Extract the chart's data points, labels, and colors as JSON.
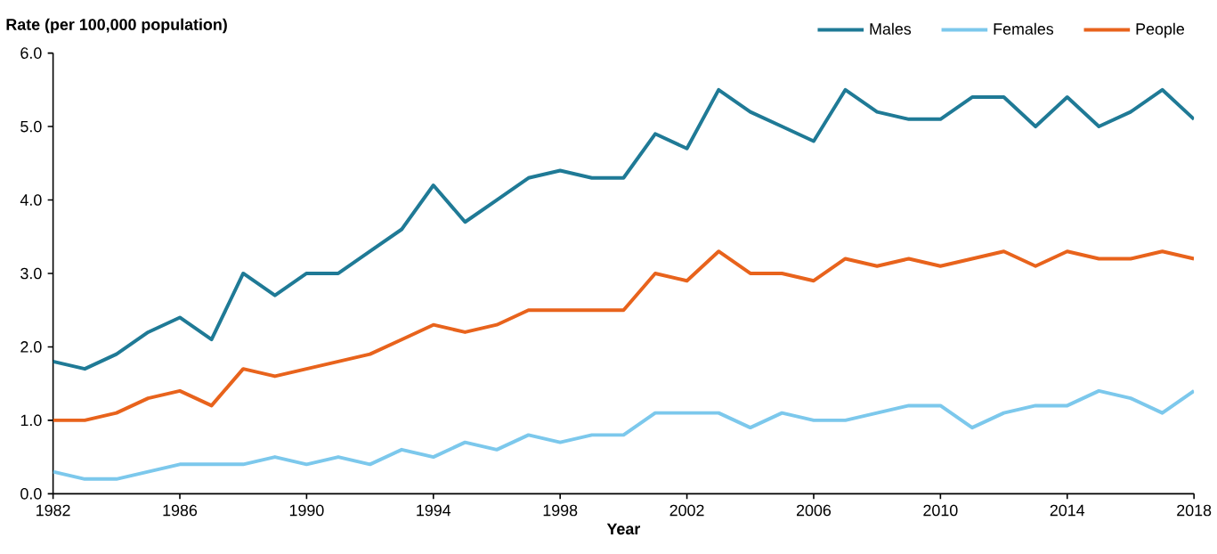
{
  "chart_data": {
    "type": "line",
    "ylabel": "Rate (per 100,000 population)",
    "xlabel": "Year",
    "x": [
      1982,
      1983,
      1984,
      1985,
      1986,
      1987,
      1988,
      1989,
      1990,
      1991,
      1992,
      1993,
      1994,
      1995,
      1996,
      1997,
      1998,
      1999,
      2000,
      2001,
      2002,
      2003,
      2004,
      2005,
      2006,
      2007,
      2008,
      2009,
      2010,
      2011,
      2012,
      2013,
      2014,
      2015,
      2016,
      2017,
      2018
    ],
    "series": [
      {
        "name": "Males",
        "color": "#1f7a96",
        "values": [
          1.8,
          1.7,
          1.9,
          2.2,
          2.4,
          2.1,
          3.0,
          2.7,
          3.0,
          3.0,
          3.3,
          3.6,
          4.2,
          3.7,
          4.0,
          4.3,
          4.4,
          4.3,
          4.3,
          4.9,
          4.7,
          5.5,
          5.2,
          5.0,
          4.8,
          5.5,
          5.2,
          5.1,
          5.1,
          5.4,
          5.4,
          5.0,
          5.4,
          5.0,
          5.2,
          5.5,
          5.1
        ]
      },
      {
        "name": "Females",
        "color": "#7cc8ec",
        "values": [
          0.3,
          0.2,
          0.2,
          0.3,
          0.4,
          0.4,
          0.4,
          0.5,
          0.4,
          0.5,
          0.4,
          0.6,
          0.5,
          0.7,
          0.6,
          0.8,
          0.7,
          0.8,
          0.8,
          1.1,
          1.1,
          1.1,
          0.9,
          1.1,
          1.0,
          1.0,
          1.1,
          1.2,
          1.2,
          0.9,
          1.1,
          1.2,
          1.2,
          1.4,
          1.3,
          1.1,
          1.4
        ]
      },
      {
        "name": "People",
        "color": "#e8631c",
        "values": [
          1.0,
          1.0,
          1.1,
          1.3,
          1.4,
          1.2,
          1.7,
          1.6,
          1.7,
          1.8,
          1.9,
          2.1,
          2.3,
          2.2,
          2.3,
          2.5,
          2.5,
          2.5,
          2.5,
          3.0,
          2.9,
          3.3,
          3.0,
          3.0,
          2.9,
          3.2,
          3.1,
          3.2,
          3.1,
          3.2,
          3.3,
          3.1,
          3.3,
          3.2,
          3.2,
          3.3,
          3.2
        ]
      }
    ],
    "xlim": [
      1982,
      2018
    ],
    "xticks": [
      1982,
      1986,
      1990,
      1994,
      1998,
      2002,
      2006,
      2010,
      2014,
      2018
    ],
    "ylim": [
      0,
      6
    ],
    "yticks": [
      {
        "value": 0,
        "label": "0.0"
      },
      {
        "value": 1,
        "label": "1.0"
      },
      {
        "value": 2,
        "label": "2.0"
      },
      {
        "value": 3,
        "label": "3.0"
      },
      {
        "value": 4,
        "label": "4.0"
      },
      {
        "value": 5,
        "label": "5.0"
      },
      {
        "value": 6,
        "label": "6.0"
      }
    ],
    "grid": false,
    "legend": "top right",
    "marker": "none",
    "line_style": "solid"
  }
}
